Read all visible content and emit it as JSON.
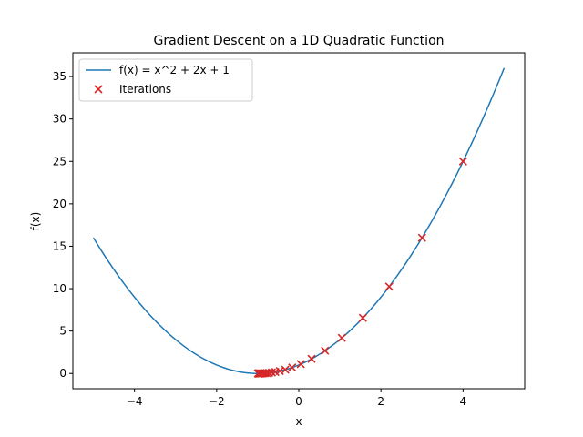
{
  "chart_data": {
    "type": "line",
    "title": "Gradient Descent on a 1D Quadratic Function",
    "xlabel": "x",
    "ylabel": "f(x)",
    "xlim": [
      -5.5,
      5.5
    ],
    "ylim": [
      -1.8,
      37.8
    ],
    "xticks": [
      -4,
      -2,
      0,
      2,
      4
    ],
    "yticks": [
      0,
      5,
      10,
      15,
      20,
      25,
      30,
      35
    ],
    "xtick_labels": [
      "−4",
      "−2",
      "0",
      "2",
      "4"
    ],
    "ytick_labels": [
      "0",
      "5",
      "10",
      "15",
      "20",
      "25",
      "30",
      "35"
    ],
    "grid": false,
    "legend_position": "upper-left",
    "series": [
      {
        "name": "f(x) = x^2 + 2x + 1",
        "type": "line",
        "color": "#1f77b4",
        "function": "x^2 + 2x + 1",
        "x_range": [
          -5,
          5
        ]
      },
      {
        "name": "Iterations",
        "type": "scatter",
        "marker": "x",
        "color": "#d62728",
        "x": [
          4.0,
          3.0,
          2.2,
          1.56,
          1.048,
          0.638,
          0.311,
          0.049,
          -0.161,
          -0.329,
          -0.463,
          -0.57,
          -0.656,
          -0.725,
          -0.78,
          -0.824,
          -0.859,
          -0.887,
          -0.91,
          -0.928,
          -0.942,
          -0.954,
          -0.963,
          -0.97,
          -0.976,
          -0.981,
          -0.985,
          -0.988,
          -0.99,
          -0.992
        ],
        "y": [
          25.0,
          16.0,
          10.24,
          6.554,
          4.194,
          2.684,
          1.718,
          1.1,
          0.704,
          0.45,
          0.288,
          0.185,
          0.118,
          0.076,
          0.048,
          0.031,
          0.02,
          0.013,
          0.008,
          0.005,
          0.003,
          0.002,
          0.001,
          0.001,
          0.001,
          0.0,
          0.0,
          0.0,
          0.0,
          0.0
        ]
      }
    ]
  }
}
